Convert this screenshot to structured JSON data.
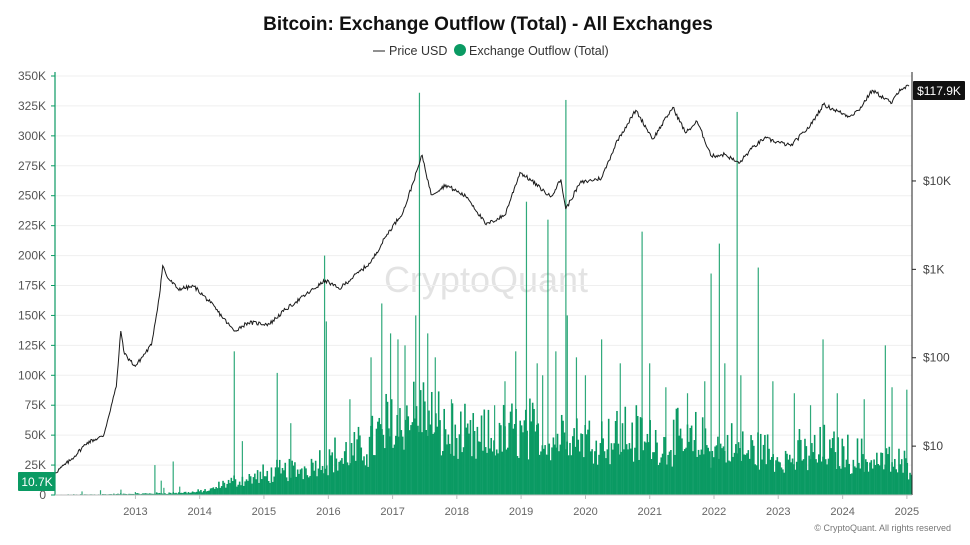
{
  "chart_data": {
    "type": "bar",
    "title": "Bitcoin: Exchange Outflow (Total) - All Exchanges",
    "legend": {
      "placement": "top-center",
      "items": [
        {
          "label": "Price USD",
          "marker": "line",
          "color": "#222222"
        },
        {
          "label": "Exchange Outflow (Total)",
          "marker": "circle",
          "color": "#0a9a63"
        }
      ]
    },
    "x_axis": {
      "type": "date",
      "range": [
        "2012-04-01",
        "2025-07-31"
      ],
      "tick_labels": [
        "2013",
        "2014",
        "2015",
        "2016",
        "2017",
        "2018",
        "2019",
        "2020",
        "2021",
        "2022",
        "2023",
        "2024",
        "2025"
      ]
    },
    "y_axis_left": {
      "label": "",
      "range": [
        0,
        350000
      ],
      "tick_values": [
        0,
        25000,
        50000,
        75000,
        100000,
        125000,
        150000,
        175000,
        200000,
        225000,
        250000,
        275000,
        300000,
        325000,
        350000
      ],
      "tick_labels": [
        "0",
        "25K",
        "50K",
        "75K",
        "100K",
        "125K",
        "150K",
        "175K",
        "200K",
        "225K",
        "250K",
        "275K",
        "300K",
        "325K",
        "350K"
      ]
    },
    "y_axis_right": {
      "label": "",
      "scale": "log",
      "range": [
        2.8,
        180000
      ],
      "tick_values": [
        10,
        100,
        1000,
        10000
      ],
      "tick_labels": [
        "$10",
        "$100",
        "$1K",
        "$10K"
      ]
    },
    "grid": "horizontal",
    "series": [
      {
        "name": "Price USD",
        "type": "line",
        "axis": "right",
        "color": "#222222",
        "points": [
          [
            "2012-04-01",
            5
          ],
          [
            "2012-07-01",
            7
          ],
          [
            "2012-10-01",
            11
          ],
          [
            "2013-01-01",
            13
          ],
          [
            "2013-03-15",
            47
          ],
          [
            "2013-04-10",
            200
          ],
          [
            "2013-05-01",
            110
          ],
          [
            "2013-07-01",
            80
          ],
          [
            "2013-10-01",
            140
          ],
          [
            "2013-11-15",
            500
          ],
          [
            "2013-12-04",
            1100
          ],
          [
            "2014-01-01",
            800
          ],
          [
            "2014-03-01",
            600
          ],
          [
            "2014-06-01",
            640
          ],
          [
            "2014-09-01",
            420
          ],
          [
            "2015-01-14",
            200
          ],
          [
            "2015-04-01",
            250
          ],
          [
            "2015-08-01",
            240
          ],
          [
            "2015-11-01",
            350
          ],
          [
            "2016-01-01",
            430
          ],
          [
            "2016-06-16",
            750
          ],
          [
            "2016-09-01",
            600
          ],
          [
            "2016-12-31",
            960
          ],
          [
            "2017-03-01",
            1200
          ],
          [
            "2017-06-01",
            2500
          ],
          [
            "2017-09-01",
            4500
          ],
          [
            "2017-12-17",
            19500
          ],
          [
            "2018-02-06",
            7000
          ],
          [
            "2018-05-01",
            9000
          ],
          [
            "2018-09-01",
            6500
          ],
          [
            "2018-12-15",
            3200
          ],
          [
            "2019-04-01",
            4100
          ],
          [
            "2019-06-26",
            12500
          ],
          [
            "2019-09-01",
            10000
          ],
          [
            "2019-12-17",
            6600
          ],
          [
            "2020-02-13",
            10400
          ],
          [
            "2020-03-12",
            4800
          ],
          [
            "2020-06-01",
            9500
          ],
          [
            "2020-10-01",
            10800
          ],
          [
            "2020-12-31",
            29000
          ],
          [
            "2021-04-14",
            63000
          ],
          [
            "2021-07-20",
            29800
          ],
          [
            "2021-11-10",
            68000
          ],
          [
            "2022-01-22",
            35000
          ],
          [
            "2022-03-28",
            47000
          ],
          [
            "2022-06-18",
            19000
          ],
          [
            "2022-09-01",
            20000
          ],
          [
            "2022-11-21",
            15800
          ],
          [
            "2023-01-31",
            23100
          ],
          [
            "2023-04-14",
            30400
          ],
          [
            "2023-09-11",
            25000
          ],
          [
            "2023-12-31",
            42200
          ],
          [
            "2024-03-14",
            73000
          ],
          [
            "2024-08-05",
            54000
          ],
          [
            "2024-10-01",
            63000
          ],
          [
            "2024-12-17",
            106000
          ],
          [
            "2025-04-08",
            76000
          ],
          [
            "2025-05-22",
            109000
          ],
          [
            "2025-07-14",
            117900
          ]
        ],
        "last_value_label": "$117.9K"
      },
      {
        "name": "Exchange Outflow (Total)",
        "type": "bar",
        "axis": "left",
        "color": "#0a9a63",
        "last_value_label": "10.7K",
        "baseline": [
          [
            "2012-04-01",
            300
          ],
          [
            "2013-01-01",
            600
          ],
          [
            "2014-01-01",
            1500
          ],
          [
            "2014-06-01",
            2500
          ],
          [
            "2014-09-01",
            4000
          ],
          [
            "2014-12-01",
            10000
          ],
          [
            "2015-06-01",
            15000
          ],
          [
            "2016-01-01",
            20000
          ],
          [
            "2016-06-01",
            28000
          ],
          [
            "2017-01-01",
            35000
          ],
          [
            "2017-06-01",
            55000
          ],
          [
            "2017-12-01",
            70000
          ],
          [
            "2018-03-01",
            55000
          ],
          [
            "2018-09-01",
            42000
          ],
          [
            "2019-03-01",
            45000
          ],
          [
            "2019-06-01",
            52000
          ],
          [
            "2019-12-01",
            45000
          ],
          [
            "2020-03-01",
            52000
          ],
          [
            "2020-09-01",
            44000
          ],
          [
            "2021-03-01",
            48000
          ],
          [
            "2021-09-01",
            42000
          ],
          [
            "2022-03-01",
            42000
          ],
          [
            "2022-09-01",
            38000
          ],
          [
            "2023-03-01",
            36000
          ],
          [
            "2023-09-01",
            30000
          ],
          [
            "2024-03-01",
            36000
          ],
          [
            "2024-09-01",
            30000
          ],
          [
            "2025-03-01",
            28000
          ],
          [
            "2025-07-31",
            22000
          ]
        ],
        "spikes": [
          [
            "2012-09-01",
            3000
          ],
          [
            "2012-12-15",
            4000
          ],
          [
            "2013-04-10",
            4500
          ],
          [
            "2013-07-01",
            2500
          ],
          [
            "2013-10-20",
            25000
          ],
          [
            "2013-11-25",
            12000
          ],
          [
            "2013-12-10",
            6000
          ],
          [
            "2014-02-01",
            28000
          ],
          [
            "2014-03-10",
            7000
          ],
          [
            "2015-01-14",
            120000
          ],
          [
            "2015-03-01",
            45000
          ],
          [
            "2015-09-15",
            102000
          ],
          [
            "2015-12-01",
            60000
          ],
          [
            "2016-06-10",
            200000
          ],
          [
            "2016-06-20",
            145000
          ],
          [
            "2016-11-01",
            80000
          ],
          [
            "2017-03-01",
            115000
          ],
          [
            "2017-05-01",
            160000
          ],
          [
            "2017-06-20",
            135000
          ],
          [
            "2017-08-01",
            130000
          ],
          [
            "2017-09-10",
            125000
          ],
          [
            "2017-11-10",
            150000
          ],
          [
            "2017-12-01",
            336000
          ],
          [
            "2018-01-17",
            135000
          ],
          [
            "2018-03-01",
            115000
          ],
          [
            "2018-06-01",
            80000
          ],
          [
            "2019-02-01",
            75000
          ],
          [
            "2019-04-01",
            95000
          ],
          [
            "2019-06-01",
            120000
          ],
          [
            "2019-08-01",
            245000
          ],
          [
            "2019-10-01",
            110000
          ],
          [
            "2019-11-01",
            100000
          ],
          [
            "2019-12-01",
            230000
          ],
          [
            "2020-01-15",
            120000
          ],
          [
            "2020-03-12",
            330000
          ],
          [
            "2020-03-20",
            150000
          ],
          [
            "2020-05-11",
            115000
          ],
          [
            "2020-07-01",
            100000
          ],
          [
            "2020-10-01",
            130000
          ],
          [
            "2021-01-15",
            110000
          ],
          [
            "2021-05-19",
            220000
          ],
          [
            "2021-07-01",
            110000
          ],
          [
            "2021-10-01",
            90000
          ],
          [
            "2022-02-01",
            85000
          ],
          [
            "2022-05-10",
            95000
          ],
          [
            "2022-06-15",
            185000
          ],
          [
            "2022-08-01",
            210000
          ],
          [
            "2022-09-01",
            110000
          ],
          [
            "2022-11-10",
            320000
          ],
          [
            "2022-12-01",
            100000
          ],
          [
            "2023-03-10",
            190000
          ],
          [
            "2023-06-01",
            95000
          ],
          [
            "2023-10-01",
            85000
          ],
          [
            "2024-01-01",
            75000
          ],
          [
            "2024-03-12",
            130000
          ],
          [
            "2024-06-01",
            85000
          ],
          [
            "2024-11-01",
            80000
          ],
          [
            "2025-03-01",
            125000
          ],
          [
            "2025-04-08",
            90000
          ],
          [
            "2025-07-01",
            88000
          ]
        ]
      }
    ],
    "annotations": {
      "watermark": "CryptoQuant",
      "copyright": "© CryptoQuant. All rights reserved"
    }
  }
}
